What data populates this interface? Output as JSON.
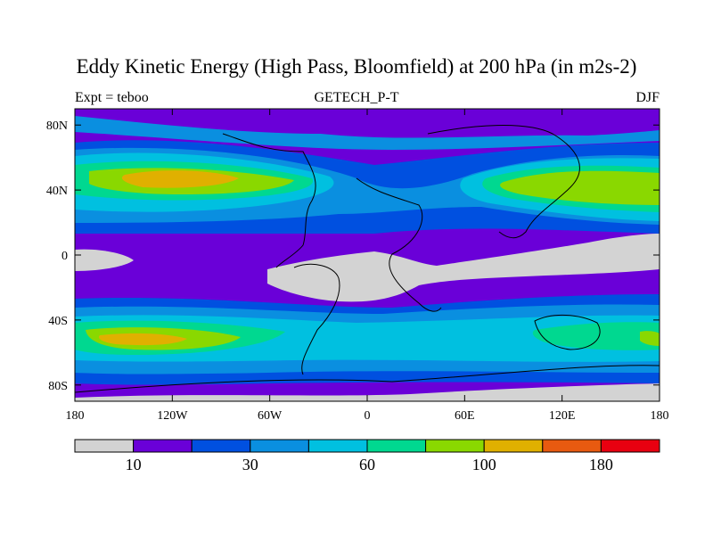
{
  "chart_data": {
    "type": "contour-map",
    "title": "Eddy Kinetic Energy (High Pass, Bloomfield) at 200 hPa (in m2s-2)",
    "subtitle_left": "Expt = teboo",
    "subtitle_center": "GETECH_P-T",
    "subtitle_right": "DJF",
    "x_range": [
      -180,
      180
    ],
    "y_range": [
      -90,
      90
    ],
    "x_ticks": [
      {
        "value": -180,
        "label": "180"
      },
      {
        "value": -120,
        "label": "120W"
      },
      {
        "value": -60,
        "label": "60W"
      },
      {
        "value": 0,
        "label": "0"
      },
      {
        "value": 60,
        "label": "60E"
      },
      {
        "value": 120,
        "label": "120E"
      },
      {
        "value": 180,
        "label": "180"
      }
    ],
    "y_ticks": [
      {
        "value": 80,
        "label": "80N"
      },
      {
        "value": 40,
        "label": "40N"
      },
      {
        "value": 0,
        "label": "0"
      },
      {
        "value": -40,
        "label": "40S"
      },
      {
        "value": -80,
        "label": "80S"
      }
    ],
    "levels": [
      10,
      20,
      30,
      40,
      60,
      80,
      100,
      140,
      180
    ],
    "colorbar_colors": [
      "#d3d3d3",
      "#6a00d8",
      "#0050e0",
      "#0a8fe0",
      "#00c0e0",
      "#00d890",
      "#8ad800",
      "#e0b000",
      "#e85a10",
      "#e80010"
    ],
    "colorbar_labels": [
      {
        "index": 1,
        "label": "10"
      },
      {
        "index": 3,
        "label": "30"
      },
      {
        "index": 5,
        "label": "60"
      },
      {
        "index": 7,
        "label": "100"
      },
      {
        "index": 9,
        "label": "180"
      }
    ],
    "features": [
      {
        "name": "north-pacific-jet",
        "lon": -115,
        "lat": 45,
        "peak": 110
      },
      {
        "name": "north-asia-pacific-jet",
        "lon": 150,
        "lat": 42,
        "peak": 105
      },
      {
        "name": "southern-pacific-storm-track",
        "lon": -135,
        "lat": -55,
        "peak": 105
      },
      {
        "name": "southern-indian-storm-track",
        "lon": 150,
        "lat": -55,
        "peak": 85
      },
      {
        "name": "tropical-minimum-atlantic-africa",
        "lon": 20,
        "lat": -8,
        "peak": 5
      },
      {
        "name": "tropical-minimum-pacific",
        "lon": 110,
        "lat": 5,
        "peak": 5
      }
    ]
  }
}
